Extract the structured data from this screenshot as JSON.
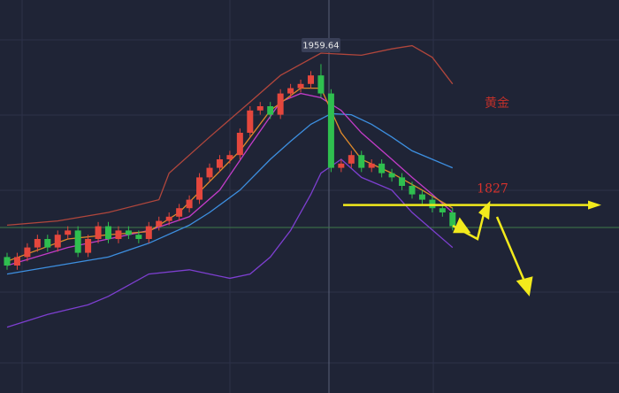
{
  "chart_data": {
    "type": "candlestick",
    "ylim": [
      1650,
      2020
    ],
    "up_color": "#e5473d",
    "down_color": "#2fbf4f",
    "candles": [
      [
        1778,
        1782,
        1766,
        1770
      ],
      [
        1770,
        1782,
        1766,
        1778
      ],
      [
        1778,
        1791,
        1774,
        1787
      ],
      [
        1787,
        1799,
        1783,
        1795
      ],
      [
        1795,
        1799,
        1783,
        1787
      ],
      [
        1787,
        1803,
        1783,
        1799
      ],
      [
        1799,
        1807,
        1795,
        1803
      ],
      [
        1803,
        1807,
        1778,
        1782
      ],
      [
        1782,
        1799,
        1778,
        1795
      ],
      [
        1795,
        1811,
        1791,
        1807
      ],
      [
        1807,
        1811,
        1791,
        1795
      ],
      [
        1795,
        1807,
        1791,
        1803
      ],
      [
        1803,
        1807,
        1795,
        1799
      ],
      [
        1799,
        1803,
        1791,
        1795
      ],
      [
        1795,
        1811,
        1791,
        1807
      ],
      [
        1807,
        1816,
        1803,
        1812
      ],
      [
        1812,
        1820,
        1808,
        1816
      ],
      [
        1816,
        1828,
        1812,
        1824
      ],
      [
        1824,
        1836,
        1820,
        1832
      ],
      [
        1832,
        1857,
        1828,
        1853
      ],
      [
        1853,
        1866,
        1849,
        1862
      ],
      [
        1862,
        1874,
        1858,
        1870
      ],
      [
        1870,
        1878,
        1866,
        1874
      ],
      [
        1874,
        1899,
        1870,
        1895
      ],
      [
        1895,
        1920,
        1891,
        1916
      ],
      [
        1916,
        1924,
        1912,
        1920
      ],
      [
        1920,
        1924,
        1908,
        1912
      ],
      [
        1912,
        1936,
        1908,
        1932
      ],
      [
        1932,
        1941,
        1928,
        1937
      ],
      [
        1937,
        1945,
        1933,
        1941
      ],
      [
        1941,
        1953,
        1937,
        1949
      ],
      [
        1949,
        1959.64,
        1928,
        1932
      ],
      [
        1932,
        1936,
        1858,
        1862
      ],
      [
        1862,
        1870,
        1858,
        1866
      ],
      [
        1866,
        1878,
        1862,
        1874
      ],
      [
        1874,
        1878,
        1858,
        1862
      ],
      [
        1862,
        1870,
        1858,
        1866
      ],
      [
        1866,
        1870,
        1853,
        1857
      ],
      [
        1857,
        1861,
        1849,
        1853
      ],
      [
        1853,
        1857,
        1841,
        1845
      ],
      [
        1845,
        1849,
        1833,
        1837
      ],
      [
        1837,
        1841,
        1828,
        1832
      ],
      [
        1832,
        1836,
        1820,
        1824
      ],
      [
        1824,
        1828,
        1816,
        1820
      ],
      [
        1820,
        1824,
        1803,
        1807
      ]
    ],
    "lines": [
      {
        "color": "#b0463c",
        "x": [
          0,
          5,
          10,
          15,
          16,
          20,
          24,
          27,
          31,
          35,
          38,
          40,
          42,
          44
        ],
        "values": [
          1808,
          1812,
          1820,
          1832,
          1857,
          1891,
          1924,
          1949,
          1970,
          1968,
          1974,
          1977,
          1966,
          1941
        ]
      },
      {
        "color": "#7d3fd0",
        "x": [
          0,
          4,
          8,
          10,
          14,
          18,
          20,
          22,
          24,
          26,
          28,
          30,
          31,
          33,
          35,
          38,
          40,
          44
        ],
        "values": [
          1712,
          1724,
          1733,
          1741,
          1762,
          1766,
          1762,
          1758,
          1762,
          1778,
          1803,
          1837,
          1857,
          1870,
          1853,
          1841,
          1820,
          1787
        ]
      },
      {
        "color": "#3d8fe0",
        "x": [
          0,
          5,
          10,
          14,
          18,
          20,
          23,
          26,
          28,
          30,
          32,
          34,
          36,
          38,
          40,
          42,
          44
        ],
        "values": [
          1762,
          1770,
          1778,
          1791,
          1808,
          1820,
          1841,
          1870,
          1887,
          1903,
          1913,
          1912,
          1903,
          1891,
          1878,
          1870,
          1862
        ]
      },
      {
        "color": "#c23cc8",
        "x": [
          0,
          6,
          10,
          14,
          18,
          21,
          24,
          27,
          29,
          31,
          33,
          35,
          38,
          40,
          42,
          44
        ],
        "values": [
          1770,
          1787,
          1795,
          1803,
          1816,
          1841,
          1883,
          1924,
          1932,
          1928,
          1916,
          1895,
          1870,
          1853,
          1837,
          1820
        ]
      },
      {
        "color": "#e08a2a",
        "x": [
          0,
          6,
          10,
          14,
          17,
          20,
          23,
          26,
          29,
          31,
          33,
          35,
          38,
          41,
          44
        ],
        "values": [
          1774,
          1795,
          1799,
          1802,
          1820,
          1849,
          1878,
          1916,
          1937,
          1937,
          1895,
          1870,
          1857,
          1841,
          1824
        ]
      }
    ],
    "peak_index": 31,
    "title": "黄金",
    "level": 1827,
    "level_color": "#f2ea1c"
  }
}
